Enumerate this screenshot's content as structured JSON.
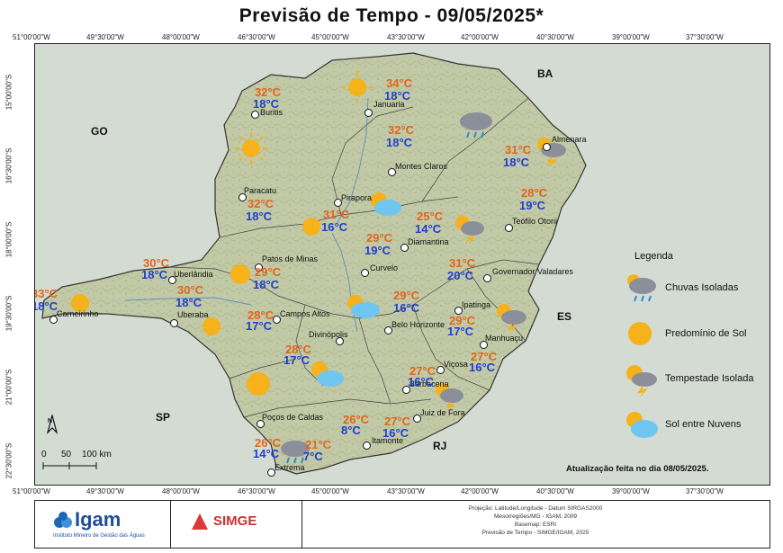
{
  "title": "Previsão de Tempo - 09/05/2025*",
  "coords": {
    "lon": [
      "51°00'00\"W",
      "49°30'00\"W",
      "48°00'00\"W",
      "46°30'00\"W",
      "45°00'00\"W",
      "43°30'00\"W",
      "42°00'00\"W",
      "40°30'00\"W",
      "39°00'00\"W",
      "37°30'00\"W"
    ],
    "lat": [
      "15°00'00\"S",
      "16°30'00\"S",
      "18°00'00\"S",
      "19°30'00\"S",
      "21°00'00\"S",
      "22°30'00\"S"
    ]
  },
  "states": {
    "go": "GO",
    "ba": "BA",
    "es": "ES",
    "sp": "SP",
    "rj": "RJ"
  },
  "cities": {
    "buritis": "Buritis",
    "januaria": "Januaria",
    "almenara": "Almenara",
    "montes_claros": "Montes Claros",
    "paracatu": "Paracatu",
    "pirapora": "Pirapora",
    "teofilo_otoni": "Teófilo Otoni",
    "diamantina": "Diamantina",
    "patos_de_minas": "Patos de Minas",
    "uberlandia": "Uberlândia",
    "curvelo": "Curvelo",
    "governador_valadares": "Governador Valadares",
    "carneirinho": "Carneirinho",
    "uberaba": "Uberaba",
    "campos_altos": "Campos Altos",
    "ipatinga": "Ipatinga",
    "divinopolis": "Divinópolis",
    "belo_horizonte": "Belo Horizonte",
    "manhuacu": "Manhuaçu",
    "vicosa": "Viçosa",
    "barbacena": "Barbacena",
    "pocos_de_caldas": "Poços de Caldas",
    "juiz_de_fora": "Juiz de Fora",
    "itamonte": "Itamonte",
    "extrema": "Extrema"
  },
  "temps": {
    "buritis": {
      "max": "32°C",
      "min": "18°C"
    },
    "januaria": {
      "max": "34°C",
      "min": "18°C"
    },
    "montes_claros": {
      "max": "32°C",
      "min": "18°C"
    },
    "almenara": {
      "max": "31°C",
      "min": "18°C"
    },
    "teofilo_otoni": {
      "max": "28°C",
      "min": "19°C"
    },
    "paracatu": {
      "max": "32°C",
      "min": "18°C"
    },
    "pirapora": {
      "max": "31°C",
      "min": "16°C"
    },
    "diamantina": {
      "max": "25°C",
      "min": "14°C"
    },
    "curvelo": {
      "max": "29°C",
      "min": "19°C"
    },
    "uberlandia": {
      "max": "30°C",
      "min": "18°C"
    },
    "patos_de_minas": {
      "max": "29°C",
      "min": "18°C"
    },
    "governador_valadares": {
      "max": "31°C",
      "min": "20°C"
    },
    "carneirinho": {
      "max": "33°C",
      "min": "18°C"
    },
    "uberaba": {
      "max": "30°C",
      "min": "18°C"
    },
    "campos_altos": {
      "max": "28°C",
      "min": "17°C"
    },
    "belo_horizonte": {
      "max": "29°C",
      "min": "16°C"
    },
    "ipatinga": {
      "max": "29°C",
      "min": "17°C"
    },
    "divinopolis": {
      "max": "28°C",
      "min": "17°C"
    },
    "manhuacu": {
      "max": "27°C",
      "min": "16°C"
    },
    "vicosa": {
      "max": "27°C",
      "min": "16°C"
    },
    "pocos_de_caldas": {
      "max": "26°C",
      "min": "8°C"
    },
    "juiz_de_fora": {
      "max": "27°C",
      "min": "16°C"
    },
    "extrema": {
      "max": "26°C",
      "min": "14°C"
    },
    "itamonte": {
      "max": "21°C",
      "min": "7°C"
    }
  },
  "legend": {
    "title": "Legenda",
    "items": [
      {
        "label": "Chuvas Isoladas",
        "icon": "rain-cloud-icon"
      },
      {
        "label": "Predomínio de Sol",
        "icon": "sun-icon"
      },
      {
        "label": "Tempestade Isolada",
        "icon": "storm-icon"
      },
      {
        "label": "Sol entre Nuvens",
        "icon": "sun-cloud-icon"
      }
    ]
  },
  "scale": {
    "l0": "0",
    "l1": "50",
    "l2": "100 km",
    "north": "N"
  },
  "update": "Atualização feita no dia 08/05/2025.",
  "footer": {
    "igam": "Igam",
    "igam_sub": "Instituto Mineiro de Gestão das Águas",
    "simge": "SIMGE",
    "meta": [
      "Projeção: Latitude/Longitude - Datum SIRGAS2000",
      "Mesorregiões/MG - IGAM, 2009",
      "Basemap: ESRI",
      "Previsão de Tempo - SIMGE/IGAM, 2025"
    ]
  },
  "colors": {
    "max": "#e2651b",
    "min": "#1f3fd0",
    "sun": "#f6b21a",
    "cloud": "#6fc6f0",
    "rain_cloud": "#8a8f9a"
  }
}
